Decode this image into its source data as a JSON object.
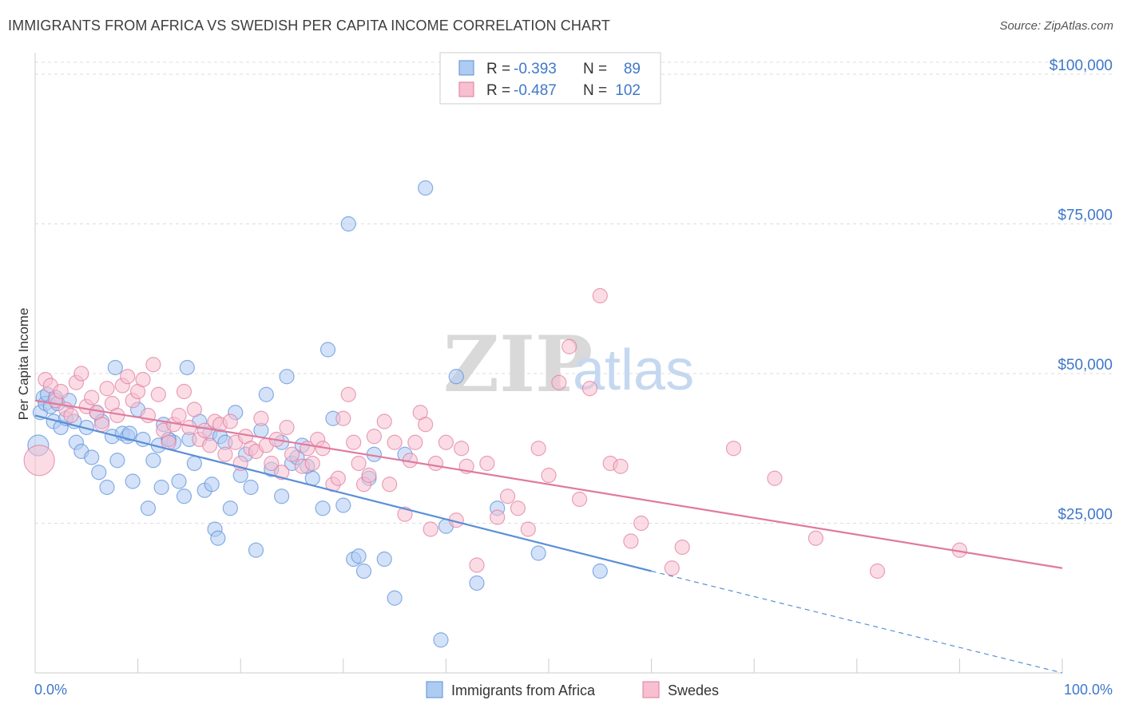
{
  "header": {
    "title": "IMMIGRANTS FROM AFRICA VS SWEDISH PER CAPITA INCOME CORRELATION CHART",
    "source": "Source: ZipAtlas.com"
  },
  "watermark": {
    "zip": "ZIP",
    "atlas": "atlas"
  },
  "legend": {
    "rows": [
      {
        "r_label": "R =",
        "r_value": "-0.393",
        "n_label": "N =",
        "n_value": "89",
        "color": "#aecbf2",
        "stroke": "#5a8fd8"
      },
      {
        "r_label": "R =",
        "r_value": "-0.487",
        "n_label": "N =",
        "n_value": "102",
        "color": "#f7bfd0",
        "stroke": "#e07a9e"
      }
    ]
  },
  "bottom_legend": [
    {
      "label": "Immigrants from Africa",
      "color": "#aecbf2",
      "stroke": "#5a8fd8"
    },
    {
      "label": "Swedes",
      "color": "#f7bfd0",
      "stroke": "#e07a9e"
    }
  ],
  "chart_data": {
    "type": "scatter",
    "title": "IMMIGRANTS FROM AFRICA VS SWEDISH PER CAPITA INCOME CORRELATION CHART",
    "xlabel": "",
    "ylabel": "Per Capita Income",
    "x_tick_labels": [
      "0.0%",
      "100.0%"
    ],
    "y_tick_labels": [
      "$25,000",
      "$50,000",
      "$75,000",
      "$100,000"
    ],
    "y_ticks": [
      25000,
      50000,
      75000,
      100000
    ],
    "xlim": [
      0,
      100
    ],
    "ylim": [
      0,
      102000
    ],
    "grid": true,
    "legend_position": "top-center",
    "series": [
      {
        "name": "Immigrants from Africa",
        "color": "#5a8fd8",
        "fill": "#aecbf2",
        "trend": {
          "x0": 0,
          "y0": 43000,
          "x1": 60,
          "y1": 17000,
          "dashed_to_x": 100,
          "dashed_to_y": 0
        },
        "points": [
          [
            0.3,
            38000
          ],
          [
            0.5,
            43500
          ],
          [
            0.8,
            46000
          ],
          [
            1.0,
            45000
          ],
          [
            1.2,
            46500
          ],
          [
            1.5,
            44500
          ],
          [
            1.8,
            42000
          ],
          [
            2.0,
            46000
          ],
          [
            2.2,
            45000
          ],
          [
            2.5,
            41000
          ],
          [
            3.0,
            42500
          ],
          [
            3.3,
            45500
          ],
          [
            4.0,
            38500
          ],
          [
            4.5,
            37000
          ],
          [
            5.0,
            41000
          ],
          [
            5.5,
            36000
          ],
          [
            6.0,
            43500
          ],
          [
            6.5,
            42000
          ],
          [
            7.0,
            31000
          ],
          [
            7.5,
            39500
          ],
          [
            7.8,
            51000
          ],
          [
            8.0,
            35500
          ],
          [
            8.5,
            40000
          ],
          [
            9.0,
            39500
          ],
          [
            9.5,
            32000
          ],
          [
            10.0,
            44000
          ],
          [
            10.5,
            39000
          ],
          [
            11.0,
            27500
          ],
          [
            11.5,
            35500
          ],
          [
            12.0,
            38000
          ],
          [
            12.3,
            31000
          ],
          [
            12.5,
            41500
          ],
          [
            13.0,
            39000
          ],
          [
            13.5,
            38500
          ],
          [
            14.0,
            32000
          ],
          [
            14.5,
            29500
          ],
          [
            14.8,
            51000
          ],
          [
            15.0,
            39000
          ],
          [
            15.5,
            35000
          ],
          [
            16.0,
            42000
          ],
          [
            16.5,
            30500
          ],
          [
            17.0,
            40000
          ],
          [
            17.5,
            24000
          ],
          [
            17.8,
            22500
          ],
          [
            18.0,
            39500
          ],
          [
            18.5,
            38500
          ],
          [
            19.0,
            27500
          ],
          [
            19.5,
            43500
          ],
          [
            20.0,
            33000
          ],
          [
            20.5,
            36500
          ],
          [
            21.0,
            31000
          ],
          [
            21.5,
            20500
          ],
          [
            22.0,
            40500
          ],
          [
            22.5,
            46500
          ],
          [
            23.0,
            34000
          ],
          [
            24.0,
            38500
          ],
          [
            24.5,
            49500
          ],
          [
            25.0,
            35000
          ],
          [
            25.5,
            36000
          ],
          [
            26.0,
            38000
          ],
          [
            26.5,
            34500
          ],
          [
            27.0,
            32500
          ],
          [
            28.0,
            27500
          ],
          [
            28.5,
            54000
          ],
          [
            29.0,
            42500
          ],
          [
            30.0,
            28000
          ],
          [
            30.5,
            75000
          ],
          [
            31.0,
            19000
          ],
          [
            31.5,
            19500
          ],
          [
            32.0,
            17000
          ],
          [
            32.5,
            32500
          ],
          [
            33.0,
            36500
          ],
          [
            34.0,
            19000
          ],
          [
            35.0,
            12500
          ],
          [
            36.0,
            36500
          ],
          [
            38.0,
            81000
          ],
          [
            39.5,
            5500
          ],
          [
            40.0,
            24500
          ],
          [
            41.0,
            49500
          ],
          [
            43.0,
            15000
          ],
          [
            45.0,
            27500
          ],
          [
            49.0,
            20000
          ],
          [
            55.0,
            17000
          ],
          [
            3.8,
            42000
          ],
          [
            6.2,
            33500
          ],
          [
            9.2,
            40000
          ],
          [
            13.0,
            39000
          ],
          [
            17.2,
            31500
          ],
          [
            24.0,
            29500
          ]
        ]
      },
      {
        "name": "Swedes",
        "color": "#e07a9e",
        "fill": "#f7bfd0",
        "trend": {
          "x0": 0,
          "y0": 45500,
          "x1": 100,
          "y1": 17500
        },
        "points": [
          [
            0.4,
            35500
          ],
          [
            1.0,
            49000
          ],
          [
            1.5,
            48000
          ],
          [
            2.0,
            45500
          ],
          [
            2.5,
            47000
          ],
          [
            3.0,
            44000
          ],
          [
            3.5,
            43000
          ],
          [
            4.0,
            48500
          ],
          [
            4.5,
            50000
          ],
          [
            5.0,
            44500
          ],
          [
            5.5,
            46000
          ],
          [
            6.0,
            43500
          ],
          [
            6.5,
            41500
          ],
          [
            7.0,
            47500
          ],
          [
            7.5,
            45000
          ],
          [
            8.0,
            43000
          ],
          [
            8.5,
            48000
          ],
          [
            9.0,
            49500
          ],
          [
            9.5,
            45500
          ],
          [
            10.0,
            47000
          ],
          [
            10.5,
            49000
          ],
          [
            11.0,
            43000
          ],
          [
            11.5,
            51500
          ],
          [
            12.0,
            46500
          ],
          [
            12.5,
            40500
          ],
          [
            13.0,
            38500
          ],
          [
            13.5,
            41500
          ],
          [
            14.0,
            43000
          ],
          [
            14.5,
            47000
          ],
          [
            15.0,
            41000
          ],
          [
            15.5,
            44000
          ],
          [
            16.0,
            39000
          ],
          [
            16.5,
            40500
          ],
          [
            17.0,
            38000
          ],
          [
            17.5,
            42000
          ],
          [
            18.0,
            41500
          ],
          [
            18.5,
            36500
          ],
          [
            19.0,
            42000
          ],
          [
            19.5,
            38500
          ],
          [
            20.0,
            35000
          ],
          [
            20.5,
            39500
          ],
          [
            21.0,
            37500
          ],
          [
            21.5,
            37000
          ],
          [
            22.0,
            42500
          ],
          [
            22.5,
            38000
          ],
          [
            23.0,
            35000
          ],
          [
            23.5,
            39000
          ],
          [
            24.0,
            33500
          ],
          [
            24.5,
            41000
          ],
          [
            25.0,
            36500
          ],
          [
            26.0,
            34500
          ],
          [
            26.5,
            37500
          ],
          [
            27.0,
            35000
          ],
          [
            27.5,
            39000
          ],
          [
            28.0,
            37500
          ],
          [
            29.0,
            31500
          ],
          [
            29.5,
            32500
          ],
          [
            30.0,
            42500
          ],
          [
            30.5,
            46500
          ],
          [
            31.0,
            38500
          ],
          [
            31.5,
            35000
          ],
          [
            32.0,
            31500
          ],
          [
            32.5,
            33000
          ],
          [
            33.0,
            39500
          ],
          [
            34.0,
            42000
          ],
          [
            34.5,
            31500
          ],
          [
            35.0,
            38500
          ],
          [
            36.0,
            26500
          ],
          [
            36.5,
            35500
          ],
          [
            37.0,
            38500
          ],
          [
            37.5,
            43500
          ],
          [
            38.0,
            41500
          ],
          [
            38.5,
            24000
          ],
          [
            39.0,
            35000
          ],
          [
            40.0,
            38500
          ],
          [
            41.0,
            25500
          ],
          [
            41.5,
            37500
          ],
          [
            42.0,
            34500
          ],
          [
            43.0,
            18000
          ],
          [
            44.0,
            35000
          ],
          [
            45.0,
            26000
          ],
          [
            46.0,
            29500
          ],
          [
            47.0,
            27500
          ],
          [
            48.0,
            24000
          ],
          [
            49.0,
            37500
          ],
          [
            50.0,
            33000
          ],
          [
            51.0,
            48500
          ],
          [
            52.0,
            54500
          ],
          [
            53.0,
            29000
          ],
          [
            54.0,
            47500
          ],
          [
            55.0,
            63000
          ],
          [
            56.0,
            35000
          ],
          [
            57.0,
            34500
          ],
          [
            58.0,
            22000
          ],
          [
            59.0,
            25000
          ],
          [
            62.0,
            17500
          ],
          [
            63.0,
            21000
          ],
          [
            68.0,
            37500
          ],
          [
            72.0,
            32500
          ],
          [
            76.0,
            22500
          ],
          [
            82.0,
            17000
          ],
          [
            90.0,
            20500
          ]
        ]
      }
    ]
  }
}
